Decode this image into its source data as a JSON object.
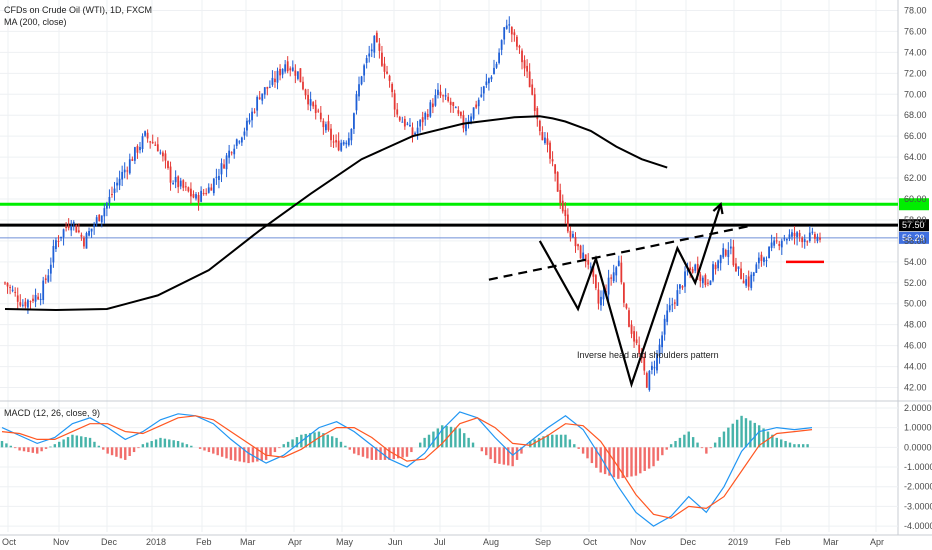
{
  "chart_data": {
    "type": "line",
    "title": "CFDs on Crude Oil (WTI), 1D, FXCM",
    "indicator_label": "MA (200, close)",
    "price_axis": {
      "ylim": [
        41,
        79
      ],
      "ticks": [
        "78.00",
        "76.00",
        "74.00",
        "72.00",
        "70.00",
        "68.00",
        "66.00",
        "64.00",
        "62.00",
        "60.00",
        "58.00",
        "56.00",
        "54.00",
        "52.00",
        "50.00",
        "48.00",
        "46.00",
        "44.00",
        "42.00"
      ]
    },
    "x_ticks": [
      "Oct",
      "Nov",
      "Dec",
      "2018",
      "Feb",
      "Mar",
      "Apr",
      "May",
      "Jun",
      "Jul",
      "Aug",
      "Sep",
      "Oct",
      "Nov",
      "Dec",
      "2019",
      "Feb",
      "Mar",
      "Apr"
    ],
    "price_series": {
      "name": "",
      "x": [
        0,
        7,
        14,
        17,
        20,
        26,
        31,
        36,
        41,
        45,
        50,
        55,
        60,
        65,
        70,
        75,
        80,
        85,
        89,
        95,
        100,
        105,
        110,
        115,
        120,
        125,
        130,
        135,
        140,
        145,
        150,
        154,
        158,
        160,
        165,
        170,
        175,
        180,
        185,
        189,
        193,
        197,
        202,
        206,
        210,
        215,
        220,
        225,
        229,
        233,
        237,
        241,
        244,
        248,
        252,
        256,
        260,
        264,
        268,
        271,
        275,
        280,
        284,
        288,
        292,
        296,
        300,
        305,
        310,
        315,
        320
      ],
      "values": [
        52,
        50,
        51,
        53,
        56,
        58,
        56,
        58,
        60,
        62,
        64,
        66,
        65,
        62,
        61,
        60,
        61,
        63,
        65,
        67,
        70,
        71,
        73,
        72,
        69,
        67,
        65,
        66,
        72,
        75,
        72,
        68,
        67,
        66,
        68,
        70,
        69,
        67,
        69,
        71,
        73,
        77,
        74,
        71,
        67,
        63,
        58,
        55,
        54,
        50,
        52,
        54,
        49,
        46,
        42.5,
        45,
        49,
        51,
        53,
        53.5,
        52,
        54,
        55.5,
        53,
        52,
        54,
        55,
        56.3,
        56.5,
        56.3,
        56.3
      ],
      "color": "#26a69a"
    },
    "ma200": {
      "name": "",
      "color": "#000000",
      "x": [
        0,
        20,
        40,
        60,
        80,
        100,
        120,
        140,
        160,
        180,
        200,
        210,
        215,
        220,
        230,
        240,
        250,
        260
      ],
      "values": [
        49.5,
        49.4,
        49.5,
        50.8,
        53.2,
        57.0,
        60.5,
        63.8,
        66.0,
        67.2,
        67.8,
        67.9,
        67.7,
        67.4,
        66.5,
        65.0,
        63.8,
        63.0
      ]
    },
    "horizontal_levels": [
      {
        "price": 59.5,
        "color": "#00ee00",
        "label": "59.50"
      },
      {
        "price": 57.5,
        "color": "#000000",
        "label": "57.50"
      },
      {
        "price": 56.29,
        "color": "#6f8fd8",
        "label": "56.29"
      },
      {
        "price": 54.0,
        "color": "#ff0000",
        "label": ""
      }
    ],
    "pattern_lines": {
      "color": "#000000",
      "points": [
        [
          210,
          56
        ],
        [
          225,
          49.5
        ],
        [
          232,
          54.3
        ],
        [
          246,
          42.3
        ],
        [
          264,
          55.3
        ],
        [
          271,
          52
        ],
        [
          281,
          59.5
        ]
      ]
    },
    "neckline": {
      "dashed": true,
      "color": "#000000",
      "points": [
        [
          190,
          52.3
        ],
        [
          292,
          57.4
        ]
      ]
    },
    "annotation": "Inverse head and shoulders pattern",
    "macd": {
      "label": "MACD (12, 26, close, 9)",
      "ylim": [
        -4.3,
        2.2
      ],
      "ticks": [
        "2.0000",
        "1.0000",
        "0.0000",
        "-1.0000",
        "-2.0000",
        "-3.0000",
        "-4.0000"
      ],
      "macd_line": {
        "color": "#2196f3",
        "values": [
          1.0,
          0.6,
          0.2,
          0.5,
          1.2,
          1.5,
          1.0,
          0.4,
          0.8,
          1.4,
          1.7,
          1.6,
          1.2,
          0.4,
          -0.3,
          -0.8,
          -0.4,
          0.3,
          1.0,
          1.3,
          0.8,
          0.1,
          -0.6,
          -1.0,
          -0.3,
          0.9,
          1.8,
          1.5,
          0.5,
          -0.4,
          0.3,
          1.0,
          1.6,
          0.9,
          -0.5,
          -2.0,
          -3.3,
          -4.0,
          -3.5,
          -2.5,
          -3.3,
          -2.0,
          -0.2,
          0.8,
          1.0,
          0.9,
          1.0
        ]
      },
      "signal_line": {
        "color": "#ff5722",
        "values": [
          0.8,
          0.7,
          0.4,
          0.4,
          0.8,
          1.2,
          1.2,
          0.8,
          0.7,
          1.1,
          1.5,
          1.6,
          1.4,
          0.8,
          0.2,
          -0.4,
          -0.5,
          -0.1,
          0.5,
          1.0,
          1.0,
          0.5,
          -0.2,
          -0.7,
          -0.6,
          0.2,
          1.2,
          1.5,
          1.0,
          0.2,
          0.1,
          0.6,
          1.2,
          1.1,
          0.3,
          -1.0,
          -2.4,
          -3.4,
          -3.6,
          -3.0,
          -3.1,
          -2.5,
          -1.2,
          0.1,
          0.7,
          0.8,
          0.9
        ]
      }
    }
  }
}
